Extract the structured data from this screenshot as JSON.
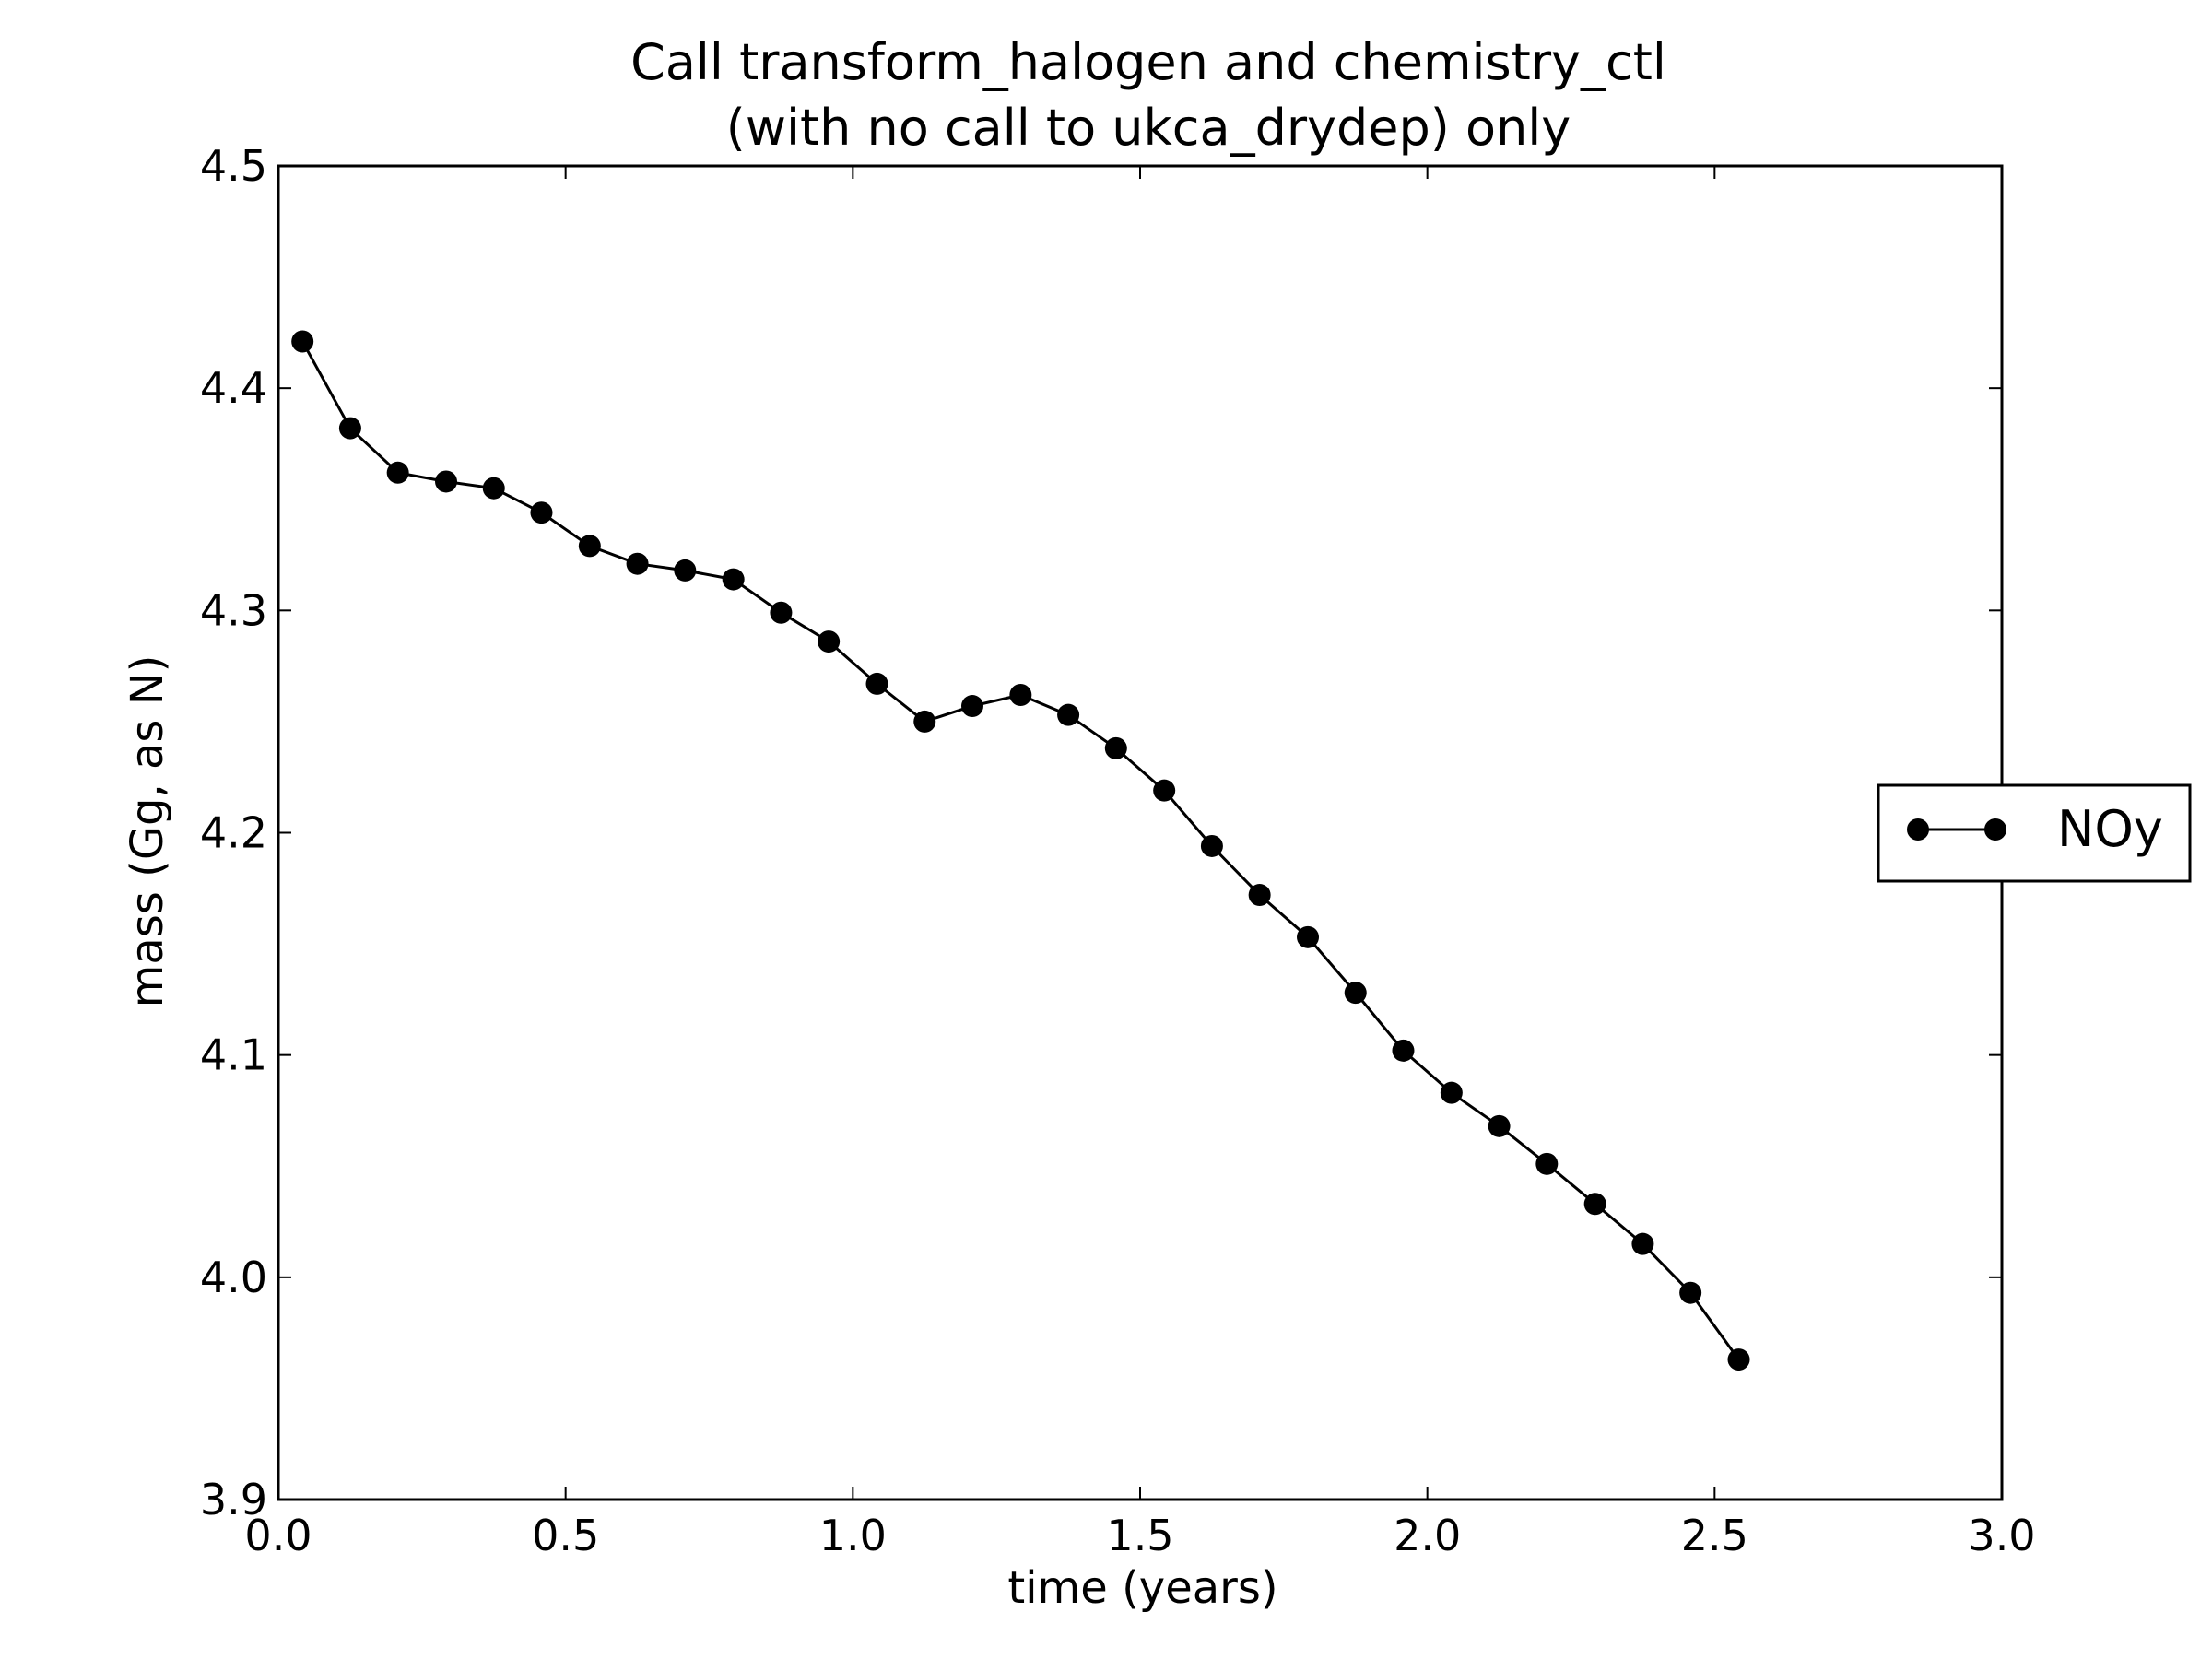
{
  "chart_data": {
    "type": "line",
    "title": [
      "Call transform_halogen and chemistry_ctl",
      "(with no call to ukca_drydep) only"
    ],
    "xlabel": "time (years)",
    "ylabel": "mass (Gg, as N)",
    "xlim": [
      0.0,
      3.0
    ],
    "ylim": [
      3.9,
      4.5
    ],
    "xticks": [
      0.0,
      0.5,
      1.0,
      1.5,
      2.0,
      2.5,
      3.0
    ],
    "xtick_labels": [
      "0.0",
      "0.5",
      "1.0",
      "1.5",
      "2.0",
      "2.5",
      "3.0"
    ],
    "yticks": [
      3.9,
      4.0,
      4.1,
      4.2,
      4.3,
      4.4,
      4.5
    ],
    "ytick_labels": [
      "3.9",
      "4.0",
      "4.1",
      "4.2",
      "4.3",
      "4.4",
      "4.5"
    ],
    "grid": false,
    "legend_position": "outside right, vertically centered",
    "series": [
      {
        "name": "NOy",
        "color": "#000000",
        "marker": "circle",
        "x": [
          0.042,
          0.125,
          0.208,
          0.292,
          0.375,
          0.458,
          0.542,
          0.625,
          0.708,
          0.792,
          0.875,
          0.958,
          1.042,
          1.125,
          1.208,
          1.292,
          1.375,
          1.458,
          1.542,
          1.625,
          1.708,
          1.792,
          1.875,
          1.958,
          2.042,
          2.125,
          2.208,
          2.292,
          2.375,
          2.458,
          2.542
        ],
        "y": [
          4.421,
          4.382,
          4.362,
          4.358,
          4.355,
          4.344,
          4.329,
          4.321,
          4.318,
          4.314,
          4.299,
          4.286,
          4.267,
          4.25,
          4.257,
          4.262,
          4.253,
          4.238,
          4.219,
          4.194,
          4.172,
          4.153,
          4.128,
          4.102,
          4.083,
          4.068,
          4.051,
          4.033,
          4.015,
          3.993,
          3.963
        ]
      }
    ]
  }
}
